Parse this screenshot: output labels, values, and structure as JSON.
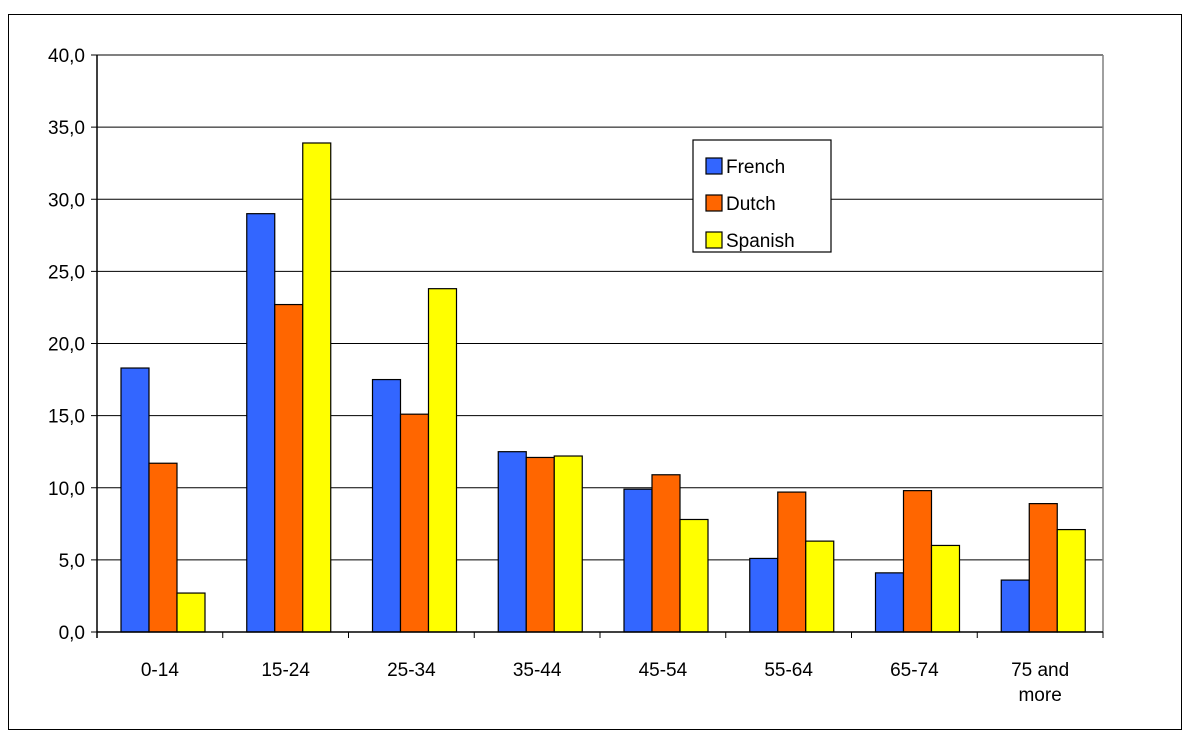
{
  "chart_data": {
    "type": "bar",
    "title": "",
    "xlabel": "",
    "ylabel": "",
    "categories": [
      "0-14",
      "15-24",
      "25-34",
      "35-44",
      "45-54",
      "55-64",
      "65-74",
      "75 and more"
    ],
    "category_lines": [
      [
        "0-14"
      ],
      [
        "15-24"
      ],
      [
        "25-34"
      ],
      [
        "35-44"
      ],
      [
        "45-54"
      ],
      [
        "55-64"
      ],
      [
        "65-74"
      ],
      [
        "75 and",
        "more"
      ]
    ],
    "ylim": [
      0,
      40
    ],
    "yticks": [
      0,
      5,
      10,
      15,
      20,
      25,
      30,
      35,
      40
    ],
    "ytick_labels": [
      "0,0",
      "5,0",
      "10,0",
      "15,0",
      "20,0",
      "25,0",
      "30,0",
      "35,0",
      "40,0"
    ],
    "grid": true,
    "legend_position": "top-right inside plot",
    "series": [
      {
        "name": "French",
        "color": "#3366ff",
        "values": [
          18.3,
          29.0,
          17.5,
          12.5,
          9.9,
          5.1,
          4.1,
          3.6
        ]
      },
      {
        "name": "Dutch",
        "color": "#ff6600",
        "values": [
          11.7,
          22.7,
          15.1,
          12.1,
          10.9,
          9.7,
          9.8,
          8.9
        ]
      },
      {
        "name": "Spanish",
        "color": "#ffff00",
        "values": [
          2.7,
          33.9,
          23.8,
          12.2,
          7.8,
          6.3,
          6.0,
          7.1
        ]
      }
    ]
  }
}
